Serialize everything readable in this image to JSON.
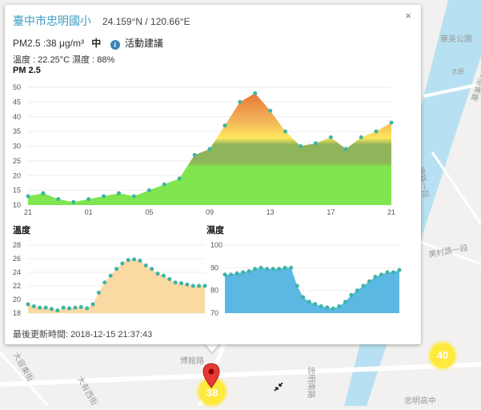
{
  "popup": {
    "site_name": "臺中市忠明國小",
    "coordinates": "24.159°N / 120.66°E",
    "close_label": "×",
    "pm_reading": "PM2.5 :38 μg/m³",
    "pm_level": "中",
    "info_icon": "i",
    "advice_label": "活動建議",
    "temp_humidity": "溫度 : 22.25°C  濕度 : 88%",
    "updated": "最後更新時間: 2018-12-15 21:37:43"
  },
  "map": {
    "labels": [
      "華美公園",
      "華美街二段",
      "太原",
      "德路一段",
      "博館路",
      "大容東街",
      "大有西街",
      "忠明南路",
      "忠明高中",
      "美村路一段"
    ],
    "markers": [
      {
        "name": "marker-38",
        "value": "38"
      },
      {
        "name": "marker-40",
        "value": "40"
      }
    ],
    "collapse_icon": "collapse-icon",
    "pin_icon": "map-pin-icon"
  },
  "colors": {
    "link": "#3a9cc1",
    "pm_fill": "#82e04e",
    "temp_fill": "#fad9a3",
    "hum_fill": "#5bb8e2",
    "point": "#3cb5a6",
    "marker": "#ffe93f"
  },
  "chart_data": [
    {
      "type": "area",
      "title": "PM 2.5",
      "x_ticks": [
        "21",
        "01",
        "05",
        "09",
        "13",
        "17",
        "21"
      ],
      "x": [
        21,
        22,
        23,
        0,
        1,
        2,
        3,
        4,
        5,
        6,
        7,
        8,
        9,
        10,
        11,
        12,
        13,
        14,
        15,
        16,
        17,
        18,
        19,
        20,
        21
      ],
      "values": [
        13,
        14,
        12,
        11,
        12,
        13,
        14,
        13,
        15,
        17,
        19,
        27,
        29,
        37,
        45,
        48,
        42,
        35,
        30,
        31,
        33,
        29,
        33,
        35,
        38
      ],
      "ylim": [
        10,
        50
      ],
      "y_ticks": [
        10,
        15,
        20,
        25,
        30,
        35,
        40,
        45,
        50
      ]
    },
    {
      "type": "area",
      "title": "溫度",
      "x": [
        21,
        21.5,
        22,
        22.5,
        23,
        23.5,
        0,
        0.5,
        1,
        1.5,
        2,
        2.5,
        3,
        3.5,
        4,
        4.5,
        5,
        5.5,
        6,
        6.5,
        7,
        7.5,
        8,
        8.5,
        9,
        9.5,
        10,
        10.5,
        11,
        11.5,
        12
      ],
      "values": [
        19.3,
        19,
        18.8,
        18.8,
        18.6,
        18.4,
        18.8,
        18.7,
        18.8,
        18.9,
        18.7,
        19.3,
        21,
        22.5,
        23.5,
        24.5,
        25.3,
        25.8,
        25.9,
        25.7,
        25,
        24.5,
        23.8,
        23.5,
        23,
        22.5,
        22.4,
        22.2,
        22,
        22,
        22
      ],
      "ylim": [
        18,
        28
      ],
      "y_ticks": [
        18,
        20,
        22,
        24,
        26,
        28
      ]
    },
    {
      "type": "area",
      "title": "濕度",
      "x": [
        21,
        21.5,
        22,
        22.5,
        23,
        23.5,
        0,
        0.5,
        1,
        1.5,
        2,
        2.5,
        3,
        3.5,
        4,
        4.5,
        5,
        5.5,
        6,
        6.5,
        7,
        7.5,
        8,
        8.5,
        9,
        9.5,
        10,
        10.5,
        11,
        11.5
      ],
      "values": [
        87,
        87,
        87.5,
        88,
        88.5,
        89.5,
        90,
        89.5,
        89.5,
        89.5,
        90,
        90,
        82,
        77,
        75,
        74,
        73,
        72.5,
        72,
        73,
        75,
        78,
        80,
        82,
        84,
        86,
        87,
        88,
        88,
        89
      ],
      "ylim": [
        70,
        100
      ],
      "y_ticks": [
        70,
        80,
        90,
        100
      ]
    }
  ]
}
